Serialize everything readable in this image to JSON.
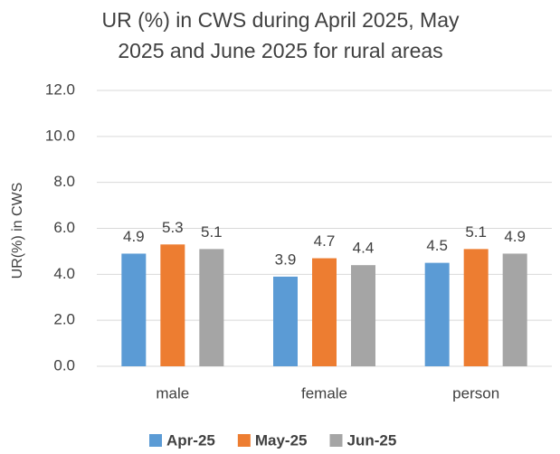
{
  "chart_data": {
    "type": "bar",
    "title": [
      "UR (%) in CWS during April 2025, May",
      "2025 and June 2025  for rural areas"
    ],
    "y_label": "UR(%) in CWS",
    "categories": [
      "male",
      "female",
      "person"
    ],
    "series": [
      {
        "name": "Apr-25",
        "color": "#5b9bd5",
        "values": [
          4.9,
          3.9,
          4.5
        ]
      },
      {
        "name": "May-25",
        "color": "#ed7d31",
        "values": [
          5.3,
          4.7,
          5.1
        ]
      },
      {
        "name": "Jun-25",
        "color": "#a5a5a5",
        "values": [
          5.1,
          4.4,
          4.9
        ]
      }
    ],
    "ylim": [
      0,
      12
    ],
    "yticks": [
      {
        "value": 0,
        "label": "0.0"
      },
      {
        "value": 2,
        "label": "2.0"
      },
      {
        "value": 4,
        "label": "4.0"
      },
      {
        "value": 6,
        "label": "6.0"
      },
      {
        "value": 8,
        "label": "8.0"
      },
      {
        "value": 10,
        "label": "10.0"
      },
      {
        "value": 12,
        "label": "12.0"
      }
    ],
    "grid": true,
    "legend": "bottom"
  }
}
